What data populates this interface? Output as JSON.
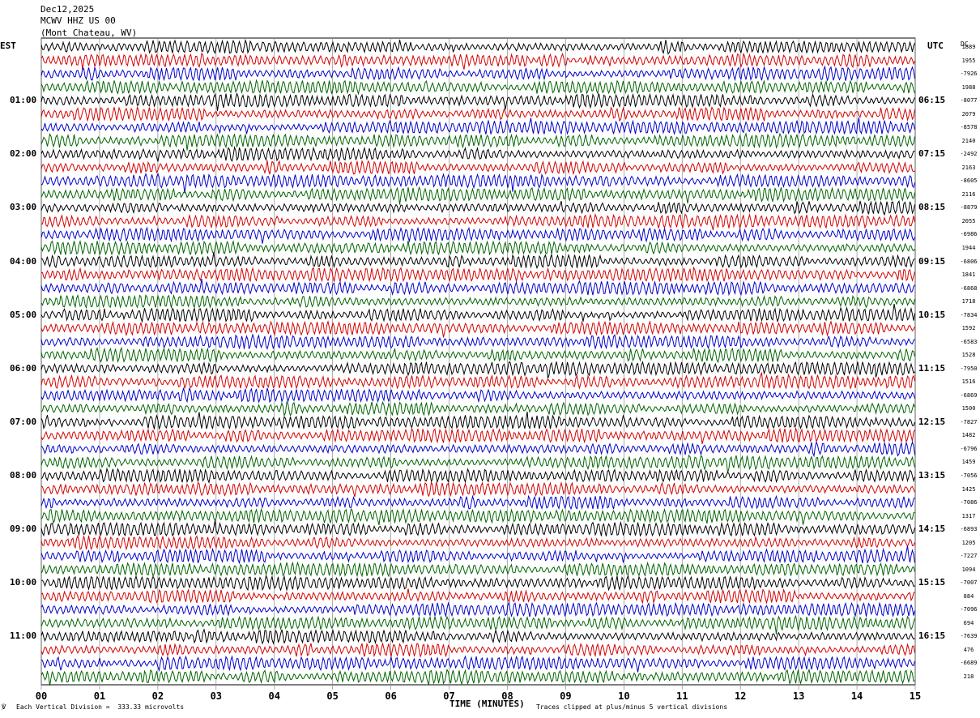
{
  "header": {
    "date": "Dec12,2025",
    "station": "MCWV HHZ US 00",
    "location": "(Mont Chateau, WV)"
  },
  "left_label": "EST",
  "right_label": "UTC",
  "dc_label": "DC",
  "footer": {
    "scale": "Each Vertical Division =  333.33 microvolts",
    "xlabel": "TIME (MINUTES)",
    "clip": "Traces clipped at plus/minus 5 vertical divisions"
  },
  "colors": {
    "trace_cycle": [
      "#000000",
      "#d40000",
      "#0000cc",
      "#006400"
    ],
    "grid": "#8a8a8a"
  },
  "chart_data": {
    "type": "line",
    "x_range": [
      0,
      15
    ],
    "x_ticks": [
      "00",
      "01",
      "02",
      "03",
      "04",
      "05",
      "06",
      "07",
      "08",
      "09",
      "10",
      "11",
      "12",
      "13",
      "14",
      "15"
    ],
    "trace_count": 48,
    "minutes_per_trace": 15,
    "left_hour_labels": [
      "01:00",
      "02:00",
      "03:00",
      "04:00",
      "05:00",
      "06:00",
      "07:00",
      "08:00",
      "09:00",
      "10:00",
      "11:00"
    ],
    "right_hour_labels": [
      "06:15",
      "07:15",
      "08:15",
      "09:15",
      "10:15",
      "11:15",
      "12:15",
      "13:15",
      "14:15",
      "15:15",
      "16:15"
    ],
    "dc_offsets": [
      "1889",
      "1955",
      "-7926",
      "1988",
      "-8077",
      "2079",
      "-8578",
      "2140",
      "-2492",
      "2163",
      "-8605",
      "2116",
      "-8879",
      "2055",
      "-6986",
      "1944",
      "-6806",
      "1841",
      "-6868",
      "1718",
      "-7834",
      "1592",
      "-6583",
      "1528",
      "-7950",
      "1516",
      "-6869",
      "1500",
      "-7827",
      "1482",
      "-6796",
      "1459",
      "-7056",
      "1425",
      "-7086",
      "1317",
      "-6893",
      "1205",
      "-7227",
      "1094",
      "-7007",
      "884",
      "-7096",
      "694",
      "-7639",
      "476",
      "-6689",
      "218"
    ]
  }
}
